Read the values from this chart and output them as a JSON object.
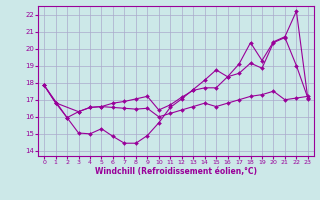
{
  "xlabel": "Windchill (Refroidissement éolien,°C)",
  "bg_color": "#cce8e8",
  "line_color": "#990099",
  "grid_color": "#aaaacc",
  "x_ticks": [
    0,
    1,
    2,
    3,
    4,
    5,
    6,
    7,
    8,
    9,
    10,
    11,
    12,
    13,
    14,
    15,
    16,
    17,
    18,
    19,
    20,
    21,
    22,
    23
  ],
  "y_ticks": [
    14,
    15,
    16,
    17,
    18,
    19,
    20,
    21,
    22
  ],
  "ylim": [
    13.7,
    22.5
  ],
  "xlim": [
    -0.5,
    23.5
  ],
  "curve1_x": [
    0,
    1,
    3,
    4,
    5,
    6,
    7,
    8,
    9,
    10,
    11,
    12,
    13,
    14,
    15,
    16,
    17,
    18,
    19,
    20,
    21,
    22,
    23
  ],
  "curve1_y": [
    17.85,
    16.82,
    16.3,
    16.55,
    16.6,
    16.55,
    16.5,
    16.45,
    16.5,
    16.0,
    16.2,
    16.4,
    16.6,
    16.8,
    16.6,
    16.8,
    17.0,
    17.2,
    17.3,
    17.5,
    17.0,
    17.1,
    17.2
  ],
  "curve2_x": [
    0,
    1,
    2,
    3,
    4,
    5,
    6,
    7,
    8,
    9,
    10,
    11,
    12,
    13,
    14,
    15,
    16,
    17,
    18,
    19,
    20,
    21,
    22,
    23
  ],
  "curve2_y": [
    17.85,
    16.82,
    15.95,
    16.3,
    16.55,
    16.6,
    16.8,
    16.9,
    17.05,
    17.2,
    16.4,
    16.7,
    17.15,
    17.55,
    17.7,
    17.7,
    18.35,
    18.55,
    19.15,
    18.85,
    20.35,
    20.65,
    19.0,
    17.1
  ],
  "curve3_x": [
    0,
    2,
    3,
    4,
    5,
    6,
    7,
    8,
    9,
    10,
    11,
    12,
    13,
    14,
    15,
    16,
    17,
    18,
    19,
    20,
    21,
    22,
    23
  ],
  "curve3_y": [
    17.85,
    15.95,
    15.05,
    15.0,
    15.3,
    14.85,
    14.45,
    14.45,
    14.9,
    15.65,
    16.55,
    17.05,
    17.6,
    18.15,
    18.75,
    18.35,
    19.1,
    20.35,
    19.3,
    20.4,
    20.7,
    22.2,
    17.05
  ]
}
